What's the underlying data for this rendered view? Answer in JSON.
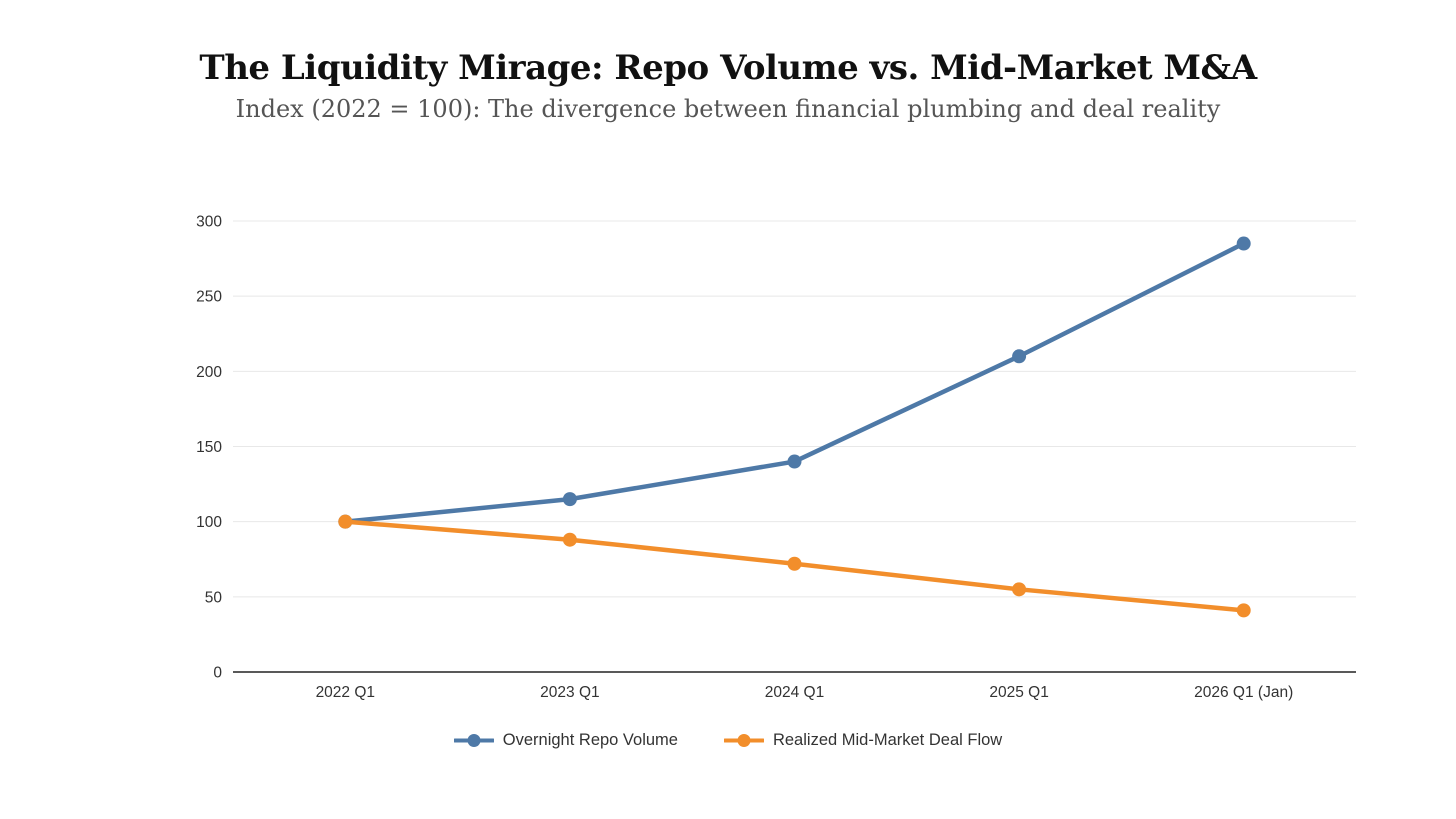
{
  "header": {
    "title": "The Liquidity Mirage: Repo Volume vs. Mid-Market M&A",
    "subtitle": "Index (2022 = 100): The divergence between financial plumbing and deal reality"
  },
  "chart_data": {
    "type": "line",
    "title": "The Liquidity Mirage: Repo Volume vs. Mid-Market M&A",
    "subtitle": "Index (2022 = 100): The divergence between financial plumbing and deal reality",
    "categories": [
      "2022 Q1",
      "2023 Q1",
      "2024 Q1",
      "2025 Q1",
      "2026 Q1 (Jan)"
    ],
    "series": [
      {
        "name": "Overnight Repo Volume",
        "color": "#4e79a7",
        "values": [
          100,
          115,
          140,
          210,
          285
        ]
      },
      {
        "name": "Realized Mid-Market Deal Flow",
        "color": "#f28e2b",
        "values": [
          100,
          88,
          72,
          55,
          41
        ]
      }
    ],
    "yticks": [
      0,
      50,
      100,
      150,
      200,
      250,
      300
    ],
    "ylim": [
      0,
      300
    ],
    "grid": true,
    "legend_position": "bottom",
    "colors": {
      "gridline": "#e8e8e8",
      "axis_line": "#222222",
      "tick_label": "#333333"
    }
  }
}
